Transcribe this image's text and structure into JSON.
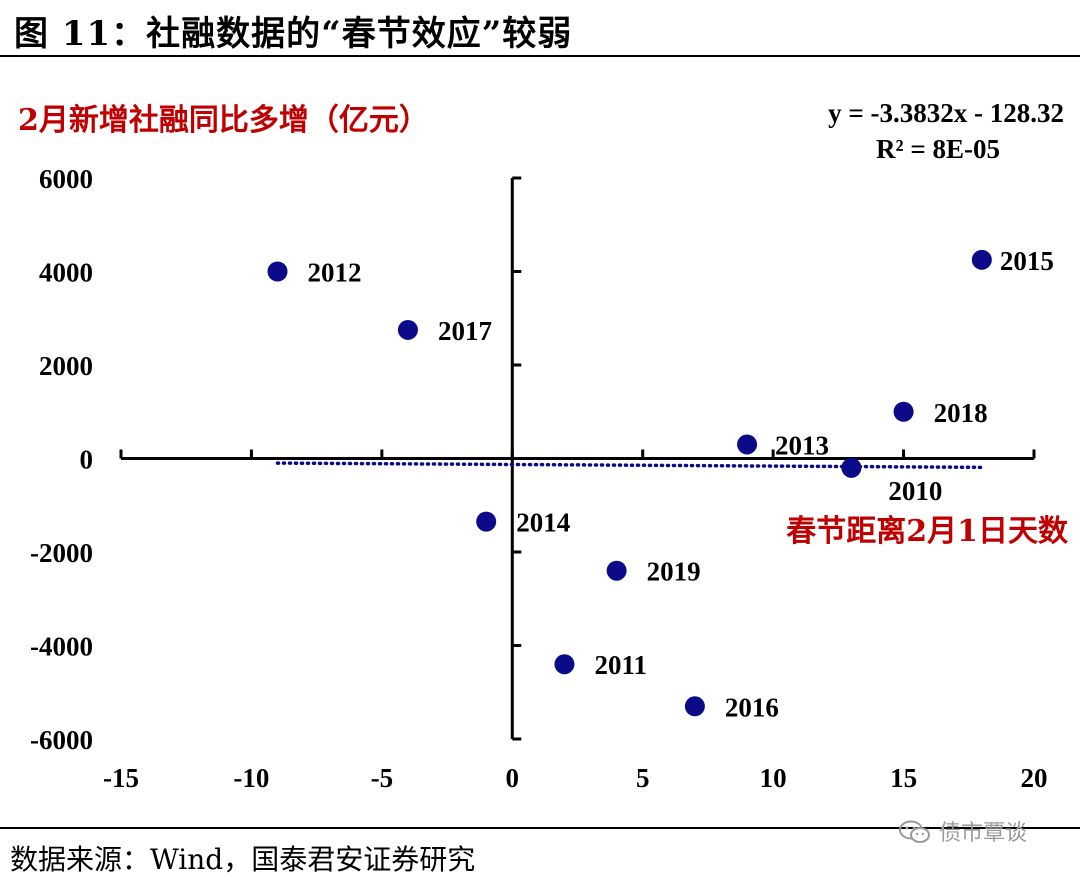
{
  "figure": {
    "title": "图 11：社融数据的“春节效应”较弱",
    "source": "数据来源：Wind，国泰君安证券研究",
    "watermark": "债市覃谈",
    "watermark_icon": "wechat-icon"
  },
  "chart_data": {
    "type": "scatter",
    "ylabel": "2月新增社融同比多增（亿元）",
    "xlabel": "春节距离2月1日天数",
    "equation": "y = -3.3832x - 128.32",
    "r_squared": "R² = 8E-05",
    "xlim": [
      -15,
      20
    ],
    "ylim": [
      -6000,
      6000
    ],
    "x_ticks": [
      -15,
      -10,
      -5,
      0,
      5,
      10,
      15,
      20
    ],
    "y_ticks": [
      -6000,
      -4000,
      -2000,
      0,
      2000,
      4000,
      6000
    ],
    "grid": false,
    "points": [
      {
        "label": "2012",
        "x": -9,
        "y": 4000
      },
      {
        "label": "2017",
        "x": -4,
        "y": 2750
      },
      {
        "label": "2014",
        "x": -1,
        "y": -1350
      },
      {
        "label": "2019",
        "x": 4,
        "y": -2400
      },
      {
        "label": "2011",
        "x": 2,
        "y": -4400
      },
      {
        "label": "2016",
        "x": 7,
        "y": -5300
      },
      {
        "label": "2013",
        "x": 9,
        "y": 300
      },
      {
        "label": "2010",
        "x": 13,
        "y": -200
      },
      {
        "label": "2018",
        "x": 15,
        "y": 1000
      },
      {
        "label": "2015",
        "x": 18,
        "y": 4250
      }
    ],
    "trendline": {
      "slope": -3.3832,
      "intercept": -128.32,
      "x_range": [
        -9,
        18
      ]
    },
    "colors": {
      "point": "#0b0b8a",
      "trendline": "#0b0b8a",
      "accent_text": "#c00000",
      "axis": "#000000"
    }
  }
}
